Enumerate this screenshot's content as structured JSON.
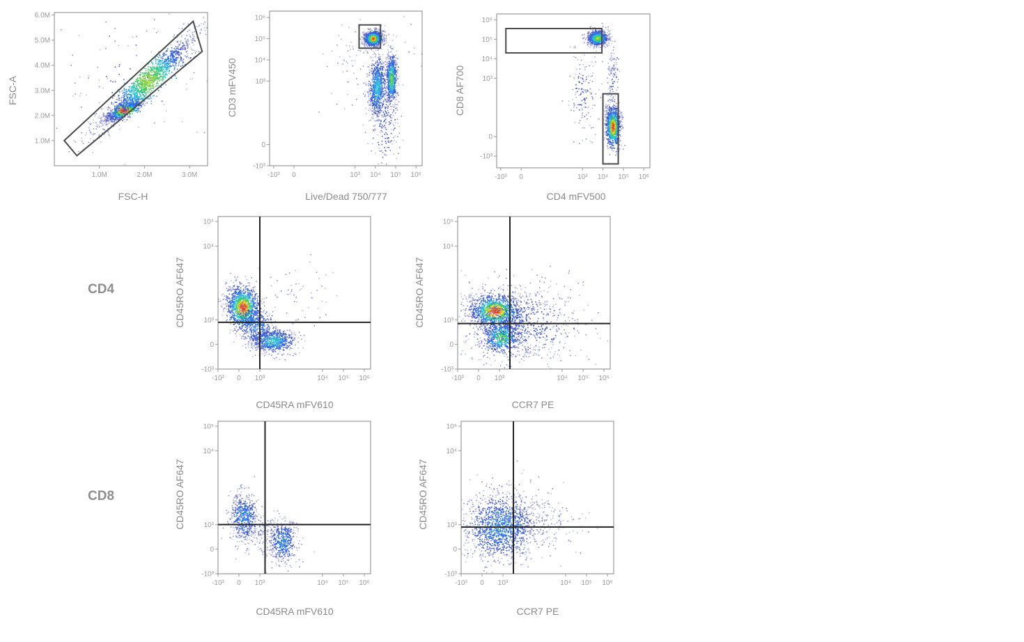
{
  "row_labels": {
    "cd4": "CD4",
    "cd8": "CD8"
  },
  "chart_data": [
    {
      "id": "p1",
      "type": "scatter",
      "title": "",
      "xlabel": "FSC-H",
      "ylabel": "FSC-A",
      "x_scale": "linear",
      "y_scale": "linear",
      "xlim": [
        0,
        3.4
      ],
      "ylim": [
        0,
        6.1
      ],
      "x_ticks": [
        {
          "label": "1.0M",
          "v": 1.0
        },
        {
          "label": "2.0M",
          "v": 2.0
        },
        {
          "label": "3.0M",
          "v": 3.0
        }
      ],
      "y_ticks": [
        {
          "label": "1.0M",
          "v": 1.0
        },
        {
          "label": "2.0M",
          "v": 2.0
        },
        {
          "label": "3.0M",
          "v": 3.0
        },
        {
          "label": "4.0M",
          "v": 4.0
        },
        {
          "label": "5.0M",
          "v": 5.0
        },
        {
          "label": "6.0M",
          "v": 6.0
        }
      ],
      "populations": [
        {
          "cx": 1.55,
          "cy": 2.2,
          "sx": 0.22,
          "sy": 0.22,
          "rho": 0.85,
          "n": 900,
          "heat": 1.0
        },
        {
          "cx": 2.1,
          "cy": 3.4,
          "sx": 0.55,
          "sy": 0.95,
          "rho": 0.95,
          "n": 1400,
          "heat": 0.75
        },
        {
          "cx": 1.6,
          "cy": 3.6,
          "sx": 0.9,
          "sy": 1.6,
          "rho": 0.3,
          "n": 120,
          "heat": 0.1
        }
      ],
      "gates": [
        {
          "type": "polygon",
          "points": [
            [
              0.22,
              1.0
            ],
            [
              3.08,
              5.75
            ],
            [
              3.28,
              4.55
            ],
            [
              0.5,
              0.4
            ]
          ]
        }
      ]
    },
    {
      "id": "p2",
      "type": "scatter",
      "title": "",
      "xlabel": "Live/Dead 750/777",
      "ylabel": "CD3 mFV450",
      "x_scale": "biexponential",
      "y_scale": "biexponential",
      "xlim": [
        -1.2,
        6.3
      ],
      "ylim": [
        -1,
        6.3
      ],
      "x_ticks": [
        {
          "label": "-10³",
          "v": -1
        },
        {
          "label": "0",
          "v": 0
        },
        {
          "label": "10³",
          "v": 3
        },
        {
          "label": "10⁴",
          "v": 4
        },
        {
          "label": "10⁵",
          "v": 5
        },
        {
          "label": "10⁶",
          "v": 6
        }
      ],
      "y_ticks": [
        {
          "label": "-10³",
          "v": -1
        },
        {
          "label": "0",
          "v": 0
        },
        {
          "label": "10³",
          "v": 3
        },
        {
          "label": "10⁴",
          "v": 4
        },
        {
          "label": "10⁵",
          "v": 5
        },
        {
          "label": "10⁶",
          "v": 6
        }
      ],
      "populations": [
        {
          "cx": 3.9,
          "cy": 5.0,
          "sx": 0.22,
          "sy": 0.18,
          "rho": 0.1,
          "n": 900,
          "heat": 1.0
        },
        {
          "cx": 4.1,
          "cy": 2.7,
          "sx": 0.22,
          "sy": 0.75,
          "rho": 0.2,
          "n": 700,
          "heat": 0.5
        },
        {
          "cx": 4.8,
          "cy": 3.1,
          "sx": 0.13,
          "sy": 0.6,
          "rho": 0.1,
          "n": 600,
          "heat": 0.75
        },
        {
          "cx": 4.5,
          "cy": 1.0,
          "sx": 0.35,
          "sy": 1.1,
          "rho": 0.0,
          "n": 200,
          "heat": 0.15
        },
        {
          "cx": 3.8,
          "cy": 4.0,
          "sx": 1.1,
          "sy": 1.2,
          "rho": 0.0,
          "n": 120,
          "heat": 0.05
        }
      ],
      "gates": [
        {
          "type": "rect",
          "x": [
            3.2,
            4.25
          ],
          "y": [
            4.55,
            5.65
          ]
        }
      ]
    },
    {
      "id": "p3",
      "type": "scatter",
      "title": "",
      "xlabel": "CD4 mFV500",
      "ylabel": "CD8 AF700",
      "x_scale": "biexponential",
      "y_scale": "biexponential",
      "xlim": [
        -1.2,
        6.3
      ],
      "ylim": [
        -1.6,
        6.3
      ],
      "x_ticks": [
        {
          "label": "-10³",
          "v": -1
        },
        {
          "label": "0",
          "v": 0
        },
        {
          "label": "10³",
          "v": 3
        },
        {
          "label": "10⁴",
          "v": 4
        },
        {
          "label": "10⁵",
          "v": 5
        },
        {
          "label": "10⁶",
          "v": 6
        }
      ],
      "y_ticks": [
        {
          "label": "-10³",
          "v": -1
        },
        {
          "label": "0",
          "v": 0
        },
        {
          "label": "10³",
          "v": 3
        },
        {
          "label": "10⁴",
          "v": 4
        },
        {
          "label": "10⁵",
          "v": 5
        },
        {
          "label": "10⁶",
          "v": 6
        }
      ],
      "populations": [
        {
          "cx": 3.75,
          "cy": 5.05,
          "sx": 0.25,
          "sy": 0.2,
          "rho": 0.0,
          "n": 700,
          "heat": 0.8
        },
        {
          "cx": 4.5,
          "cy": 0.5,
          "sx": 0.18,
          "sy": 0.55,
          "rho": 0.0,
          "n": 900,
          "heat": 1.0
        },
        {
          "cx": 3.0,
          "cy": 2.3,
          "sx": 0.35,
          "sy": 1.2,
          "rho": 0.0,
          "n": 150,
          "heat": 0.1
        },
        {
          "cx": 4.5,
          "cy": 2.9,
          "sx": 0.12,
          "sy": 0.9,
          "rho": 0.0,
          "n": 120,
          "heat": 0.1
        }
      ],
      "gates": [
        {
          "type": "rect",
          "x": [
            -0.75,
            3.95
          ],
          "y": [
            4.3,
            5.55
          ]
        },
        {
          "type": "rect",
          "x": [
            4.0,
            4.75
          ],
          "y": [
            -1.4,
            2.2
          ]
        }
      ]
    },
    {
      "id": "p4",
      "type": "scatter",
      "title": "",
      "xlabel": "CD45RA mFV610",
      "ylabel": "CD45RO AF647",
      "x_scale": "biexponential",
      "y_scale": "biexponential",
      "xlim": [
        -1,
        6.3
      ],
      "ylim": [
        -1,
        5.2
      ],
      "x_ticks": [
        {
          "label": "-10³",
          "v": -1
        },
        {
          "label": "0",
          "v": 0
        },
        {
          "label": "10³",
          "v": 1
        },
        {
          "label": "10⁴",
          "v": 4
        },
        {
          "label": "10⁵",
          "v": 5
        },
        {
          "label": "10⁶",
          "v": 6
        }
      ],
      "y_ticks": [
        {
          "label": "-10³",
          "v": -1
        },
        {
          "label": "0",
          "v": 0
        },
        {
          "label": "10³",
          "v": 1
        },
        {
          "label": "10⁴",
          "v": 4
        },
        {
          "label": "10⁵",
          "v": 5
        }
      ],
      "populations": [
        {
          "cx": 0.2,
          "cy": 1.5,
          "sx": 0.4,
          "sy": 0.45,
          "rho": -0.2,
          "n": 1100,
          "heat": 1.0
        },
        {
          "cx": 1.6,
          "cy": 0.15,
          "sx": 0.55,
          "sy": 0.25,
          "rho": 0.0,
          "n": 700,
          "heat": 0.55
        },
        {
          "cx": 0.8,
          "cy": 0.8,
          "sx": 0.55,
          "sy": 0.45,
          "rho": -0.5,
          "n": 400,
          "heat": 0.35
        },
        {
          "cx": 2.6,
          "cy": 2.0,
          "sx": 1.0,
          "sy": 0.7,
          "rho": 0.0,
          "n": 60,
          "heat": 0.05
        }
      ],
      "gates": [
        {
          "type": "quadrant",
          "x": 1.0,
          "y": 0.9
        }
      ]
    },
    {
      "id": "p5",
      "type": "scatter",
      "title": "",
      "xlabel": "CCR7 PE",
      "ylabel": "CD45RO AF647",
      "x_scale": "biexponential",
      "y_scale": "biexponential",
      "xlim": [
        -1,
        6.3
      ],
      "ylim": [
        -1,
        5.2
      ],
      "x_ticks": [
        {
          "label": "-10³",
          "v": -1
        },
        {
          "label": "0",
          "v": 0
        },
        {
          "label": "10³",
          "v": 1
        },
        {
          "label": "10⁴",
          "v": 4
        },
        {
          "label": "10⁵",
          "v": 5
        },
        {
          "label": "10⁶",
          "v": 6
        }
      ],
      "y_ticks": [
        {
          "label": "-10³",
          "v": -1
        },
        {
          "label": "0",
          "v": 0
        },
        {
          "label": "10³",
          "v": 1
        },
        {
          "label": "10⁴",
          "v": 4
        },
        {
          "label": "10⁵",
          "v": 5
        }
      ],
      "populations": [
        {
          "cx": 0.8,
          "cy": 1.35,
          "sx": 0.6,
          "sy": 0.35,
          "rho": 0.0,
          "n": 1100,
          "heat": 1.0
        },
        {
          "cx": 1.1,
          "cy": 0.3,
          "sx": 0.45,
          "sy": 0.35,
          "rho": 0.0,
          "n": 600,
          "heat": 0.7
        },
        {
          "cx": 1.8,
          "cy": 0.8,
          "sx": 1.6,
          "sy": 0.8,
          "rho": 0.0,
          "n": 900,
          "heat": 0.15
        }
      ],
      "gates": [
        {
          "type": "quadrant",
          "x": 1.5,
          "y": 0.85
        }
      ]
    },
    {
      "id": "p6",
      "type": "scatter",
      "title": "",
      "xlabel": "CD45RA mFV610",
      "ylabel": "CD45RO AF647",
      "x_scale": "biexponential",
      "y_scale": "biexponential",
      "xlim": [
        -1,
        6.3
      ],
      "ylim": [
        -1,
        5.2
      ],
      "x_ticks": [
        {
          "label": "-10³",
          "v": -1
        },
        {
          "label": "0",
          "v": 0
        },
        {
          "label": "10³",
          "v": 1
        },
        {
          "label": "10⁴",
          "v": 4
        },
        {
          "label": "10⁵",
          "v": 5
        },
        {
          "label": "10⁶",
          "v": 6
        }
      ],
      "y_ticks": [
        {
          "label": "-10³",
          "v": -1
        },
        {
          "label": "0",
          "v": 0
        },
        {
          "label": "10³",
          "v": 1
        },
        {
          "label": "10⁴",
          "v": 4
        },
        {
          "label": "10⁵",
          "v": 5
        }
      ],
      "populations": [
        {
          "cx": 0.25,
          "cy": 1.3,
          "sx": 0.35,
          "sy": 0.5,
          "rho": 0.0,
          "n": 500,
          "heat": 0.35
        },
        {
          "cx": 2.1,
          "cy": 0.3,
          "sx": 0.35,
          "sy": 0.45,
          "rho": 0.0,
          "n": 450,
          "heat": 0.35
        },
        {
          "cx": 1.0,
          "cy": 0.7,
          "sx": 0.6,
          "sy": 0.4,
          "rho": 0.0,
          "n": 120,
          "heat": 0.05
        }
      ],
      "gates": [
        {
          "type": "quadrant",
          "x": 1.25,
          "y": 1.0
        }
      ]
    },
    {
      "id": "p7",
      "type": "scatter",
      "title": "",
      "xlabel": "CCR7 PE",
      "ylabel": "CD45RO AF647",
      "x_scale": "biexponential",
      "y_scale": "biexponential",
      "xlim": [
        -1,
        6.3
      ],
      "ylim": [
        -1,
        5.2
      ],
      "x_ticks": [
        {
          "label": "-10³",
          "v": -1
        },
        {
          "label": "0",
          "v": 0
        },
        {
          "label": "10³",
          "v": 1
        },
        {
          "label": "10⁴",
          "v": 4
        },
        {
          "label": "10⁵",
          "v": 5
        },
        {
          "label": "10⁶",
          "v": 6
        }
      ],
      "y_ticks": [
        {
          "label": "-10³",
          "v": -1
        },
        {
          "label": "0",
          "v": 0
        },
        {
          "label": "10³",
          "v": 1
        },
        {
          "label": "10⁴",
          "v": 4
        },
        {
          "label": "10⁵",
          "v": 5
        }
      ],
      "populations": [
        {
          "cx": 0.9,
          "cy": 0.9,
          "sx": 0.9,
          "sy": 0.7,
          "rho": 0.0,
          "n": 1300,
          "heat": 0.35
        },
        {
          "cx": 2.4,
          "cy": 1.1,
          "sx": 1.2,
          "sy": 0.6,
          "rho": 0.0,
          "n": 250,
          "heat": 0.05
        }
      ],
      "gates": [
        {
          "type": "quadrant",
          "x": 1.5,
          "y": 0.9
        }
      ]
    }
  ]
}
